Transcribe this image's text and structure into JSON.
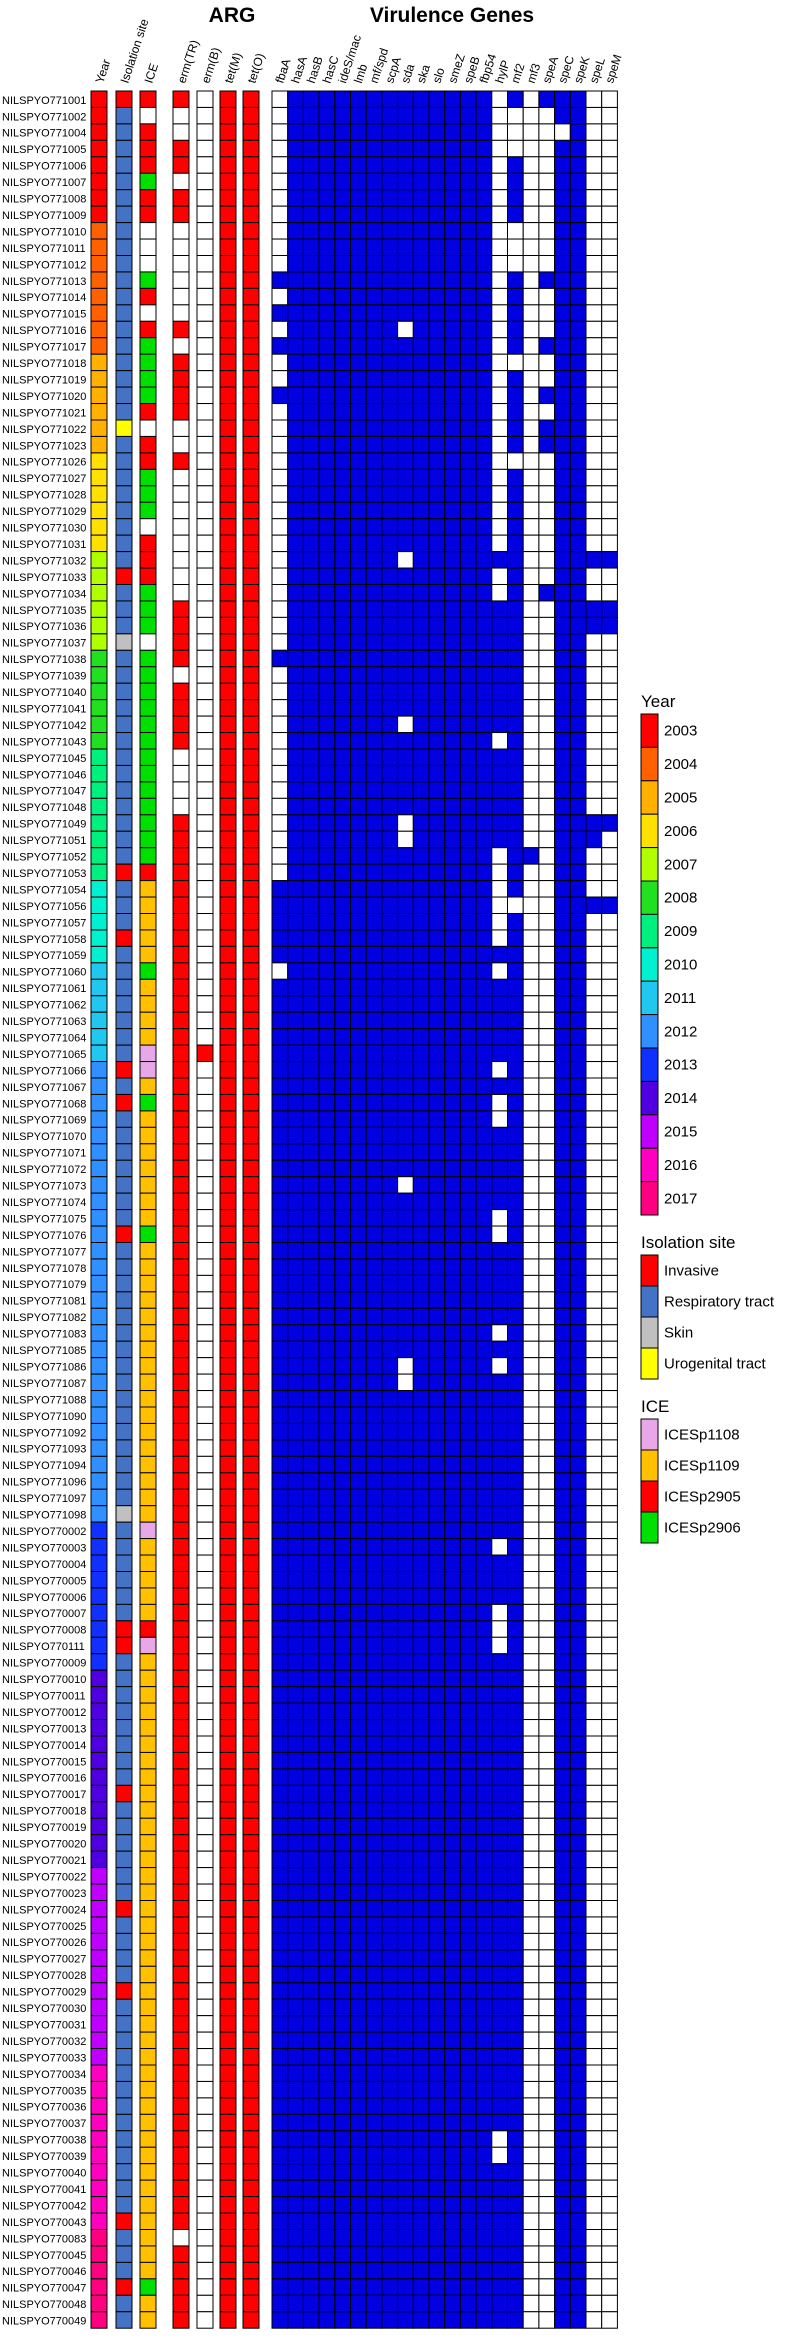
{
  "chart_data": {
    "type": "heatmap",
    "headers": {
      "year": "Year",
      "isolation_site": "Isolation site",
      "ice": "ICE",
      "arg_section": "ARG",
      "virulence_section": "Virulence Genes"
    },
    "arg_genes": [
      "erm(TR)",
      "erm(B)",
      "tet(M)",
      "tet(O)"
    ],
    "virulence_genes": [
      "fbaA",
      "hasA",
      "hasB",
      "hasC",
      "ideS/mac",
      "lmb",
      "mf/spd",
      "scpA",
      "sda",
      "ska",
      "slo",
      "smeZ",
      "speB",
      "fbp54",
      "hylP",
      "mf2",
      "mf3",
      "speA",
      "speC",
      "speK",
      "speL",
      "speM"
    ],
    "strains": [
      "NILSPYO771001",
      "NILSPYO771002",
      "NILSPYO771004",
      "NILSPYO771005",
      "NILSPYO771006",
      "NILSPYO771007",
      "NILSPYO771008",
      "NILSPYO771009",
      "NILSPYO771010",
      "NILSPYO771011",
      "NILSPYO771012",
      "NILSPYO771013",
      "NILSPYO771014",
      "NILSPYO771015",
      "NILSPYO771016",
      "NILSPYO771017",
      "NILSPYO771018",
      "NILSPYO771019",
      "NILSPYO771020",
      "NILSPYO771021",
      "NILSPYO771022",
      "NILSPYO771023",
      "NILSPYO771026",
      "NILSPYO771027",
      "NILSPYO771028",
      "NILSPYO771029",
      "NILSPYO771030",
      "NILSPYO771031",
      "NILSPYO771032",
      "NILSPYO771033",
      "NILSPYO771034",
      "NILSPYO771035",
      "NILSPYO771036",
      "NILSPYO771037",
      "NILSPYO771038",
      "NILSPYO771039",
      "NILSPYO771040",
      "NILSPYO771041",
      "NILSPYO771042",
      "NILSPYO771043",
      "NILSPYO771045",
      "NILSPYO771046",
      "NILSPYO771047",
      "NILSPYO771048",
      "NILSPYO771049",
      "NILSPYO771051",
      "NILSPYO771052",
      "NILSPYO771053",
      "NILSPYO771054",
      "NILSPYO771056",
      "NILSPYO771057",
      "NILSPYO771058",
      "NILSPYO771059",
      "NILSPYO771060",
      "NILSPYO771061",
      "NILSPYO771062",
      "NILSPYO771063",
      "NILSPYO771064",
      "NILSPYO771065",
      "NILSPYO771066",
      "NILSPYO771067",
      "NILSPYO771068",
      "NILSPYO771069",
      "NILSPYO771070",
      "NILSPYO771071",
      "NILSPYO771072",
      "NILSPYO771073",
      "NILSPYO771074",
      "NILSPYO771075",
      "NILSPYO771076",
      "NILSPYO771077",
      "NILSPYO771078",
      "NILSPYO771079",
      "NILSPYO771081",
      "NILSPYO771082",
      "NILSPYO771083",
      "NILSPYO771085",
      "NILSPYO771086",
      "NILSPYO771087",
      "NILSPYO771088",
      "NILSPYO771090",
      "NILSPYO771092",
      "NILSPYO771093",
      "NILSPYO771094",
      "NILSPYO771096",
      "NILSPYO771097",
      "NILSPYO771098",
      "NILSPYO770002",
      "NILSPYO770003",
      "NILSPYO770004",
      "NILSPYO770005",
      "NILSPYO770006",
      "NILSPYO770007",
      "NILSPYO770008",
      "NILSPYO770111",
      "NILSPYO770009",
      "NILSPYO770010",
      "NILSPYO770011",
      "NILSPYO770012",
      "NILSPYO770013",
      "NILSPYO770014",
      "NILSPYO770015",
      "NILSPYO770016",
      "NILSPYO770017",
      "NILSPYO770018",
      "NILSPYO770019",
      "NILSPYO770020",
      "NILSPYO770021",
      "NILSPYO770022",
      "NILSPYO770023",
      "NILSPYO770024",
      "NILSPYO770025",
      "NILSPYO770026",
      "NILSPYO770027",
      "NILSPYO770028",
      "NILSPYO770029",
      "NILSPYO770030",
      "NILSPYO770031",
      "NILSPYO770032",
      "NILSPYO770033",
      "NILSPYO770034",
      "NILSPYO770035",
      "NILSPYO770036",
      "NILSPYO770037",
      "NILSPYO770038",
      "NILSPYO770039",
      "NILSPYO770040",
      "NILSPYO770041",
      "NILSPYO770042",
      "NILSPYO770043",
      "NILSPYO770083",
      "NILSPYO770045",
      "NILSPYO770046",
      "NILSPYO770047",
      "NILSPYO770048",
      "NILSPYO770049"
    ],
    "year_codes": [
      0,
      0,
      0,
      0,
      0,
      0,
      0,
      0,
      1,
      1,
      1,
      1,
      1,
      1,
      1,
      1,
      2,
      2,
      2,
      2,
      2,
      2,
      3,
      3,
      3,
      3,
      3,
      3,
      4,
      4,
      4,
      4,
      4,
      4,
      5,
      5,
      5,
      5,
      5,
      5,
      6,
      6,
      6,
      6,
      6,
      6,
      6,
      6,
      7,
      7,
      7,
      7,
      7,
      8,
      8,
      8,
      8,
      8,
      8,
      9,
      9,
      9,
      9,
      9,
      9,
      9,
      9,
      9,
      9,
      9,
      9,
      9,
      9,
      9,
      9,
      9,
      9,
      9,
      9,
      9,
      9,
      9,
      9,
      9,
      9,
      9,
      9,
      10,
      10,
      10,
      10,
      10,
      10,
      10,
      10,
      10,
      11,
      11,
      11,
      11,
      11,
      11,
      11,
      11,
      11,
      11,
      11,
      11,
      12,
      12,
      12,
      12,
      12,
      12,
      12,
      12,
      12,
      12,
      12,
      12,
      13,
      13,
      13,
      13,
      13,
      13,
      13,
      13,
      13,
      13,
      14,
      14,
      14,
      14,
      14,
      14
    ],
    "isolation_site_codes": [
      0,
      1,
      1,
      1,
      1,
      1,
      1,
      1,
      1,
      1,
      1,
      1,
      1,
      1,
      1,
      1,
      1,
      1,
      1,
      1,
      3,
      1,
      1,
      1,
      1,
      1,
      1,
      1,
      1,
      0,
      1,
      1,
      1,
      2,
      1,
      1,
      1,
      1,
      1,
      1,
      1,
      1,
      1,
      1,
      1,
      1,
      1,
      0,
      1,
      1,
      1,
      0,
      1,
      1,
      1,
      1,
      1,
      1,
      1,
      0,
      1,
      0,
      1,
      1,
      1,
      1,
      1,
      1,
      1,
      0,
      1,
      1,
      1,
      1,
      1,
      1,
      1,
      1,
      1,
      1,
      1,
      1,
      1,
      1,
      1,
      1,
      2,
      1,
      1,
      1,
      1,
      1,
      1,
      0,
      0,
      1,
      1,
      1,
      1,
      1,
      1,
      1,
      1,
      0,
      1,
      1,
      1,
      1,
      1,
      1,
      0,
      1,
      1,
      1,
      1,
      0,
      1,
      1,
      1,
      1,
      1,
      1,
      1,
      1,
      1,
      1,
      1,
      1,
      1,
      0,
      1,
      1,
      1,
      0,
      1,
      1
    ],
    "ice_codes": [
      2,
      -1,
      2,
      2,
      2,
      3,
      2,
      2,
      -1,
      -1,
      -1,
      3,
      2,
      -1,
      2,
      3,
      3,
      3,
      3,
      2,
      -1,
      2,
      2,
      3,
      3,
      3,
      -1,
      2,
      2,
      2,
      3,
      3,
      3,
      -1,
      3,
      3,
      3,
      3,
      3,
      3,
      3,
      3,
      3,
      3,
      3,
      3,
      3,
      2,
      1,
      1,
      1,
      1,
      1,
      3,
      1,
      1,
      1,
      1,
      0,
      0,
      1,
      3,
      1,
      1,
      1,
      1,
      1,
      1,
      1,
      3,
      1,
      1,
      1,
      1,
      1,
      1,
      1,
      1,
      1,
      1,
      1,
      1,
      1,
      1,
      1,
      1,
      1,
      0,
      1,
      1,
      1,
      1,
      1,
      2,
      0,
      1,
      1,
      1,
      1,
      1,
      1,
      1,
      1,
      1,
      1,
      1,
      1,
      1,
      1,
      1,
      1,
      1,
      1,
      1,
      1,
      1,
      1,
      1,
      1,
      1,
      1,
      1,
      1,
      1,
      1,
      1,
      1,
      1,
      1,
      1,
      1,
      1,
      1,
      3,
      1,
      1
    ],
    "arg_matrix": [
      "1011",
      "0011",
      "0011",
      "1011",
      "1011",
      "0011",
      "1011",
      "1011",
      "0011",
      "0011",
      "0011",
      "0011",
      "0011",
      "0011",
      "1011",
      "0011",
      "1011",
      "1011",
      "1011",
      "1011",
      "0011",
      "0011",
      "1011",
      "0011",
      "0011",
      "0011",
      "0011",
      "0011",
      "0011",
      "0011",
      "0011",
      "1011",
      "1011",
      "1011",
      "1011",
      "0011",
      "1011",
      "1011",
      "1011",
      "1011",
      "0011",
      "0011",
      "0011",
      "0011",
      "1011",
      "1011",
      "1011",
      "1011",
      "1011",
      "1011",
      "1011",
      "1011",
      "1011",
      "1011",
      "1011",
      "1011",
      "1011",
      "1011",
      "1111",
      "1011",
      "1011",
      "1011",
      "1011",
      "1011",
      "1011",
      "1011",
      "1011",
      "1011",
      "1011",
      "1011",
      "1011",
      "1011",
      "1011",
      "1011",
      "1011",
      "1011",
      "1011",
      "1011",
      "1011",
      "1011",
      "1011",
      "1011",
      "1011",
      "1011",
      "1011",
      "1011",
      "1011",
      "1011",
      "1011",
      "1011",
      "1011",
      "1011",
      "1011",
      "1011",
      "1011",
      "1011",
      "1011",
      "1011",
      "1011",
      "1011",
      "1011",
      "1011",
      "1011",
      "1011",
      "1011",
      "1011",
      "1011",
      "1011",
      "1011",
      "1011",
      "1011",
      "1011",
      "1011",
      "1011",
      "1011",
      "1011",
      "1011",
      "1011",
      "1011",
      "1011",
      "1011",
      "1011",
      "1011",
      "1011",
      "1011",
      "1011",
      "1011",
      "1011",
      "1011",
      "1011",
      "0011",
      "1011",
      "1011",
      "1011",
      "1011",
      "1011"
    ],
    "virulence_matrix": [
      "0111111111111101011100",
      "0111111111111100001100",
      "0111111111111100000100",
      "0111111111111100001100",
      "0111111111111101001100",
      "0111111111111101001100",
      "0111111111111101001100",
      "0111111111111101001100",
      "0111111111111100001100",
      "0111111111111100001100",
      "0111111111111100001100",
      "1111111111111101011100",
      "0111111111111101001100",
      "1111111111111101001100",
      "0111111101111101001100",
      "1111111111111101011100",
      "0111111111111100001100",
      "0111111111111101001100",
      "1111111111111101011100",
      "0111111111111101001100",
      "0111111111111101011100",
      "0111111111111101011100",
      "0111111111111100001100",
      "0111111111111101001100",
      "0111111111111101001100",
      "0111111111111101001100",
      "0111111111111101001100",
      "0111111111111101001100",
      "0111111101111111001111",
      "0111111111111101001100",
      "0111111111111101011100",
      "0111111111111111001111",
      "0111111111111111001111",
      "0111111111111111001100",
      "1111111111111111001100",
      "0111111111111111001100",
      "0111111111111111001100",
      "0111111111111111001100",
      "0111111101111111001100",
      "0111111111111101001100",
      "0111111111111111001100",
      "0111111111111111001100",
      "0111111111111111001100",
      "0111111111111111001100",
      "0111111101111111001111",
      "0111111101111111001110",
      "0111111111111101101100",
      "0111111111111101001100",
      "1111111111111101001100",
      "1111111111111100001111",
      "1111111111111101001100",
      "1111111111111101001100",
      "1111111111111111001100",
      "0111111111111101001100",
      "1111111111111111001100",
      "1111111111111111001100",
      "1111111111111111001100",
      "1111111111111111001100",
      "1111111111111111001100",
      "1111111111111101001100",
      "1111111111111111001100",
      "1111111111111101001100",
      "1111111111111101001100",
      "1111111111111111001100",
      "1111111111111111001100",
      "1111111111111111001100",
      "1111111101111111001100",
      "1111111111111111001100",
      "1111111111111101001100",
      "1111111111111101001100",
      "1111111111111111001100",
      "1111111111111111001100",
      "1111111111111111001100",
      "1111111111111111001100",
      "1111111111111111001100",
      "1111111111111101001100",
      "1111111111111111001100",
      "1111111101111101001100",
      "1111111101111111001100",
      "1111111111111111001100",
      "1111111111111111001100",
      "1111111111111111001100",
      "1111111111111111001100",
      "1111111111111111001100",
      "1111111111111111001100",
      "1111111111111111001100",
      "1111111111111111001100",
      "1111111111111111001100",
      "1111111111111101001100",
      "1111111111111111001100",
      "1111111111111111001100",
      "1111111111111111001100",
      "1111111111111101001100",
      "1111111111111101001100",
      "1111111111111101001100",
      "1111111111111111001100",
      "1111111111111111001100",
      "1111111111111111001100",
      "1111111111111111001100",
      "1111111111111111001100",
      "1111111111111111001100",
      "1111111111111111001100",
      "1111111111111111001100",
      "1111111111111111001100",
      "1111111111111111001100",
      "1111111111111111001100",
      "1111111111111111001100",
      "1111111111111111001100",
      "1111111111111111001100",
      "1111111111111111001100",
      "1111111111111111001100",
      "1111111111111111001100",
      "1111111111111111001100",
      "1111111111111111001100",
      "1111111111111111001100",
      "1111111111111111001100",
      "1111111111111111001100",
      "1111111111111111001100",
      "1111111111111111001100",
      "1111111111111111001100",
      "1111111111111111001100",
      "1111111111111111001100",
      "1111111111111111001100",
      "1111111111111111001100",
      "1111111111111101001100",
      "1111111111111101001100",
      "1111111111111111001100",
      "1111111111111111001100",
      "1111111111111111001100",
      "1111111111111111001100",
      "1111111111111111001100",
      "1111111111111111001100",
      "1111111111111111001100",
      "1111111111111111001100",
      "1111111111111111001100",
      "1111111111111111001100"
    ],
    "legend": {
      "year": {
        "title": "Year",
        "items": [
          {
            "label": "2003",
            "color": "#ff0000"
          },
          {
            "label": "2004",
            "color": "#ff6000"
          },
          {
            "label": "2005",
            "color": "#ffb000"
          },
          {
            "label": "2006",
            "color": "#ffe000"
          },
          {
            "label": "2007",
            "color": "#b0ff00"
          },
          {
            "label": "2008",
            "color": "#20e020"
          },
          {
            "label": "2009",
            "color": "#00f080"
          },
          {
            "label": "2010",
            "color": "#00f0d0"
          },
          {
            "label": "2011",
            "color": "#20c8f0"
          },
          {
            "label": "2012",
            "color": "#3090ff"
          },
          {
            "label": "2013",
            "color": "#1030ff"
          },
          {
            "label": "2014",
            "color": "#5000e0"
          },
          {
            "label": "2015",
            "color": "#c000ff"
          },
          {
            "label": "2016",
            "color": "#ff00c0"
          },
          {
            "label": "2017",
            "color": "#ff0080"
          }
        ]
      },
      "isolation_site": {
        "title": "Isolation site",
        "items": [
          {
            "label": "Invasive",
            "color": "#ff0000"
          },
          {
            "label": "Respiratory tract",
            "color": "#4472c4"
          },
          {
            "label": "Skin",
            "color": "#c0c0c0"
          },
          {
            "label": "Urogenital tract",
            "color": "#ffff00"
          }
        ]
      },
      "ice": {
        "title": "ICE",
        "items": [
          {
            "label": "ICESp1108",
            "color": "#e8a8e8"
          },
          {
            "label": "ICESp1109",
            "color": "#ffc000"
          },
          {
            "label": "ICESp2905",
            "color": "#ff0000"
          },
          {
            "label": "ICESp2906",
            "color": "#00e000"
          }
        ]
      }
    },
    "colors": {
      "arg_present": "#ff0000",
      "virulence_present": "#0000e0",
      "absent": "#ffffff",
      "grid": "#000000"
    }
  }
}
